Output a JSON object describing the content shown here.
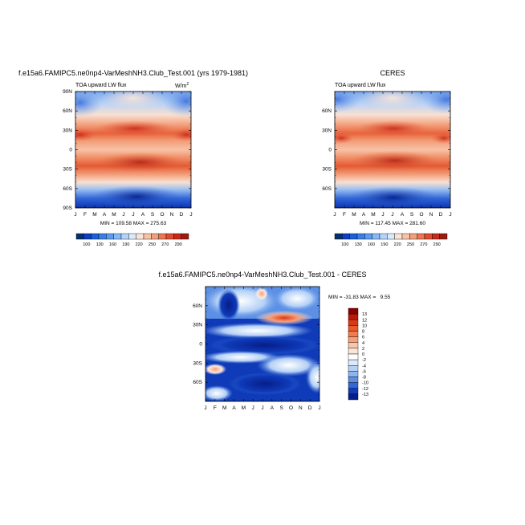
{
  "panels": [
    {
      "id": "model",
      "top_title": "f.e15a6.FAMIPC5.ne0np4-VarMeshNH3.Club_Test.001 (yrs 1979-1981)",
      "left_label": "TOA upward LW flux",
      "units": "W/m",
      "units_sup": "2",
      "minmax": "MIN = 109.58 MAX = 275.63"
    },
    {
      "id": "ceres",
      "top_title": "CERES",
      "left_label": "TOA upward LW flux",
      "minmax": "MIN = 117.45 MAX = 281.60"
    },
    {
      "id": "diff",
      "top_title": "f.e15a6.FAMIPC5.ne0np4-VarMeshNH3.Club_Test.001 - CERES",
      "minmax": "MIN = -31.83 MAX =   9.55"
    }
  ],
  "months": [
    "J",
    "F",
    "M",
    "A",
    "M",
    "J",
    "J",
    "A",
    "S",
    "O",
    "N",
    "D",
    "J"
  ],
  "lat_labels_full": [
    "90N",
    "60N",
    "30N",
    "0",
    "30S",
    "60S",
    "90S"
  ],
  "lat_labels_short": [
    "60N",
    "30N",
    "0",
    "30S",
    "60S"
  ],
  "colorbar_top": {
    "labels": [
      "100",
      "130",
      "160",
      "190",
      "220",
      "250",
      "270",
      "290"
    ],
    "colors": [
      "#08306b",
      "#0d3fc0",
      "#1c5fd8",
      "#3a7ee6",
      "#5c9bf0",
      "#86b8f5",
      "#b4d3f8",
      "#dcebfb",
      "#fbe4d6",
      "#f7c3a6",
      "#f29f7c",
      "#eb7554",
      "#e04a2f",
      "#c82a1a",
      "#9c1b10"
    ]
  },
  "colorbar_diff": {
    "labels": [
      "13",
      "12",
      "10",
      "8",
      "6",
      "4",
      "2",
      "0",
      "-2",
      "-4",
      "-6",
      "-8",
      "-10",
      "-12",
      "-13"
    ],
    "colors": [
      "#8b0000",
      "#b81a0b",
      "#d93a16",
      "#ea5a2b",
      "#f27c4e",
      "#f6a07a",
      "#f9c6aa",
      "#fde6d8",
      "#ffffff",
      "#dce9fb",
      "#b4d0f6",
      "#8cb5f0",
      "#5c90e6",
      "#3268d6",
      "#0f3ab8",
      "#061e8a"
    ]
  },
  "chart_data": [
    {
      "type": "heatmap",
      "title": "f.e15a6.FAMIPC5.ne0np4-VarMeshNH3.Club_Test.001 (yrs 1979-1981)",
      "variable": "TOA upward LW flux",
      "units": "W/m2",
      "x": "month",
      "xticks": [
        "J",
        "F",
        "M",
        "A",
        "M",
        "J",
        "J",
        "A",
        "S",
        "O",
        "N",
        "D",
        "J"
      ],
      "y": "latitude",
      "ylim": [
        -90,
        90
      ],
      "min": 109.58,
      "max": 275.63
    },
    {
      "type": "heatmap",
      "title": "CERES",
      "variable": "TOA upward LW flux",
      "units": "W/m2",
      "x": "month",
      "xticks": [
        "J",
        "F",
        "M",
        "A",
        "M",
        "J",
        "J",
        "A",
        "S",
        "O",
        "N",
        "D",
        "J"
      ],
      "y": "latitude",
      "ylim": [
        -90,
        90
      ],
      "min": 117.45,
      "max": 281.6
    },
    {
      "type": "heatmap",
      "title": "f.e15a6.FAMIPC5.ne0np4-VarMeshNH3.Club_Test.001 - CERES",
      "variable": "TOA upward LW flux difference",
      "x": "month",
      "xticks": [
        "J",
        "F",
        "M",
        "A",
        "M",
        "J",
        "J",
        "A",
        "S",
        "O",
        "N",
        "D",
        "J"
      ],
      "y": "latitude",
      "ylim": [
        -90,
        90
      ],
      "min": -31.83,
      "max": 9.55
    }
  ]
}
